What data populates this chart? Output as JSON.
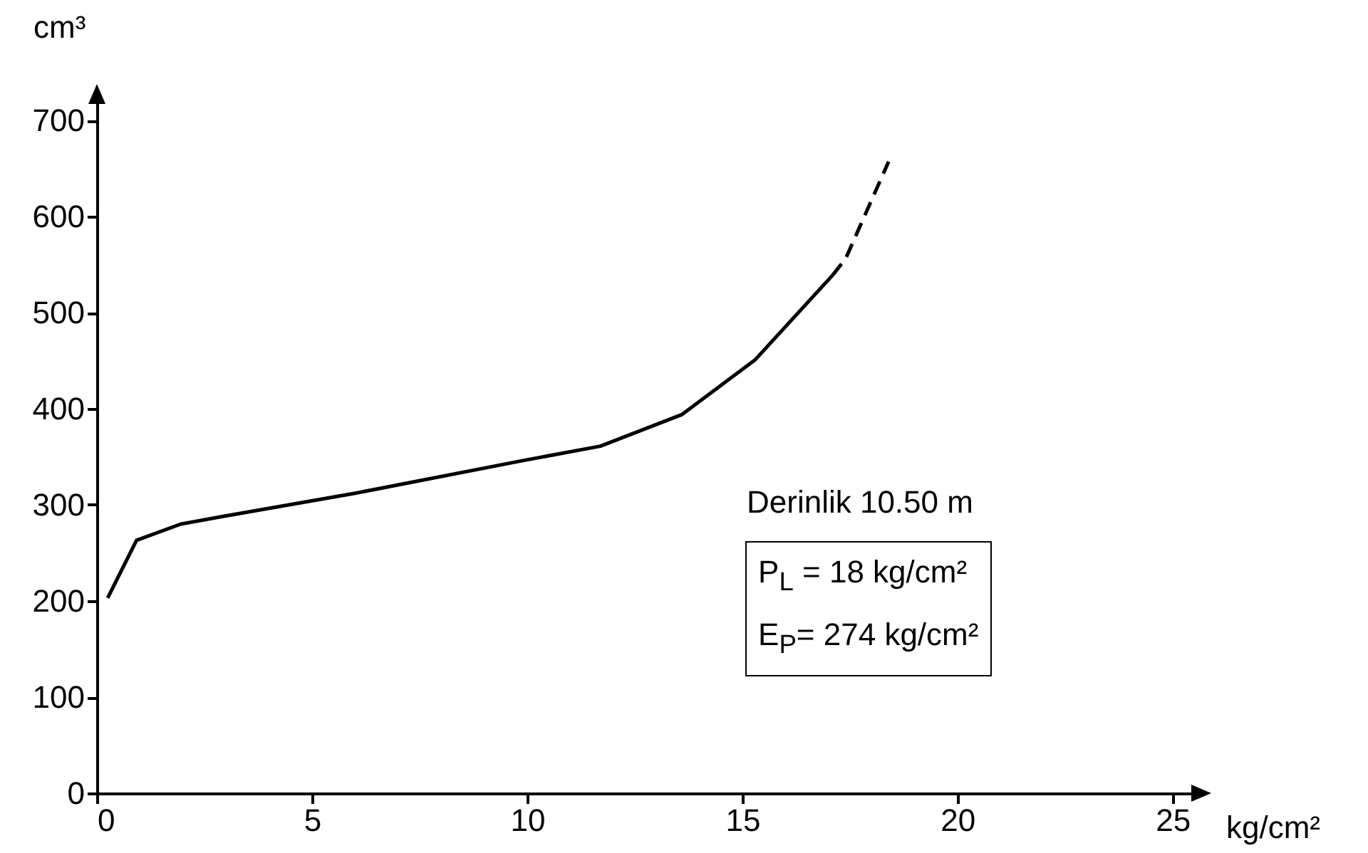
{
  "chart_data": {
    "type": "line",
    "xlabel": "kg/cm²",
    "ylabel": "cm³",
    "series": [
      {
        "color": "#000000",
        "line_style": "solid",
        "x": [
          0.25,
          0.92,
          1.95,
          2.93,
          6.0,
          9.9,
          11.7,
          13.6,
          15.3,
          17.1
        ],
        "values": [
          203,
          263,
          280,
          288,
          312,
          346,
          361,
          394,
          451,
          539
        ]
      },
      {
        "color": "#000000",
        "line_style": "dashed",
        "x": [
          17.1,
          17.4,
          18.4
        ],
        "values": [
          539,
          556,
          657
        ]
      }
    ],
    "xlim": [
      0,
      25.5
    ],
    "ylim": [
      0,
      720
    ],
    "xticks": [
      0,
      5,
      10,
      15,
      20,
      25
    ],
    "yticks": [
      0,
      100,
      200,
      300,
      400,
      500,
      600,
      700
    ],
    "grid": false,
    "marker": "none",
    "annotations": [
      "Derinlik 10.50 m",
      "P$_{L}$ = 18  kg/cm²",
      "E$_{P}$= 274  kg/cm²"
    ]
  }
}
